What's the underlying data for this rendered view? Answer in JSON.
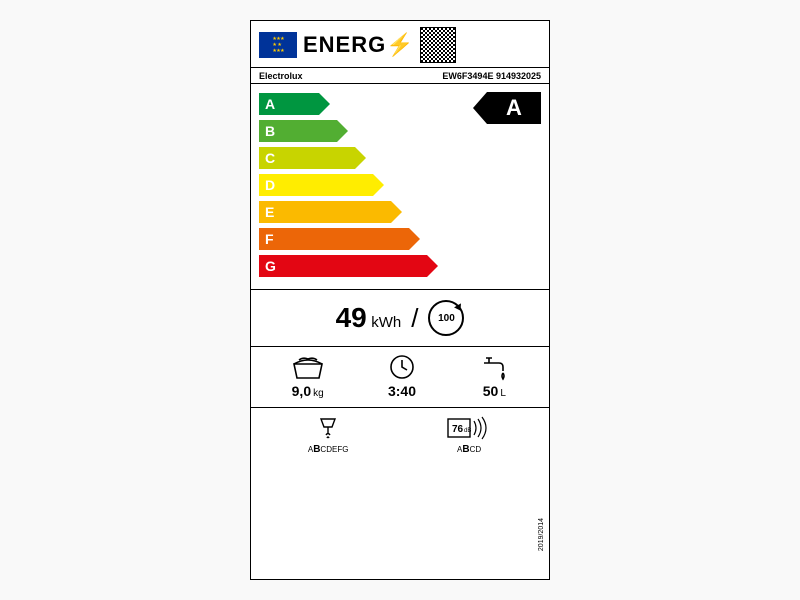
{
  "header": {
    "title": "ENERG",
    "bolt_glyph": "⚡"
  },
  "product": {
    "brand": "Electrolux",
    "model": "EW6F3494E 914932025"
  },
  "scale": {
    "grades": [
      {
        "letter": "A",
        "color": "#009640",
        "width": 60
      },
      {
        "letter": "B",
        "color": "#52ae32",
        "width": 78
      },
      {
        "letter": "C",
        "color": "#c8d400",
        "width": 96
      },
      {
        "letter": "D",
        "color": "#ffed00",
        "width": 114
      },
      {
        "letter": "E",
        "color": "#fbba00",
        "width": 132
      },
      {
        "letter": "F",
        "color": "#ec6608",
        "width": 150
      },
      {
        "letter": "G",
        "color": "#e30613",
        "width": 168
      }
    ],
    "rating": "A"
  },
  "consumption": {
    "value": "49",
    "unit": "kWh",
    "cycles": "100"
  },
  "specs_row1": {
    "capacity": {
      "value": "9,0",
      "unit": "kg"
    },
    "duration": {
      "value": "3:40"
    },
    "water": {
      "value": "50",
      "unit": "L"
    }
  },
  "specs_row2": {
    "spin": {
      "scale_pre": "A",
      "scale_bold": "B",
      "scale_post": "CDEFG"
    },
    "noise": {
      "value": "76",
      "unit": "dB",
      "scale_pre": "A",
      "scale_bold": "B",
      "scale_post": "CD"
    }
  },
  "regulation": "2019/2014"
}
